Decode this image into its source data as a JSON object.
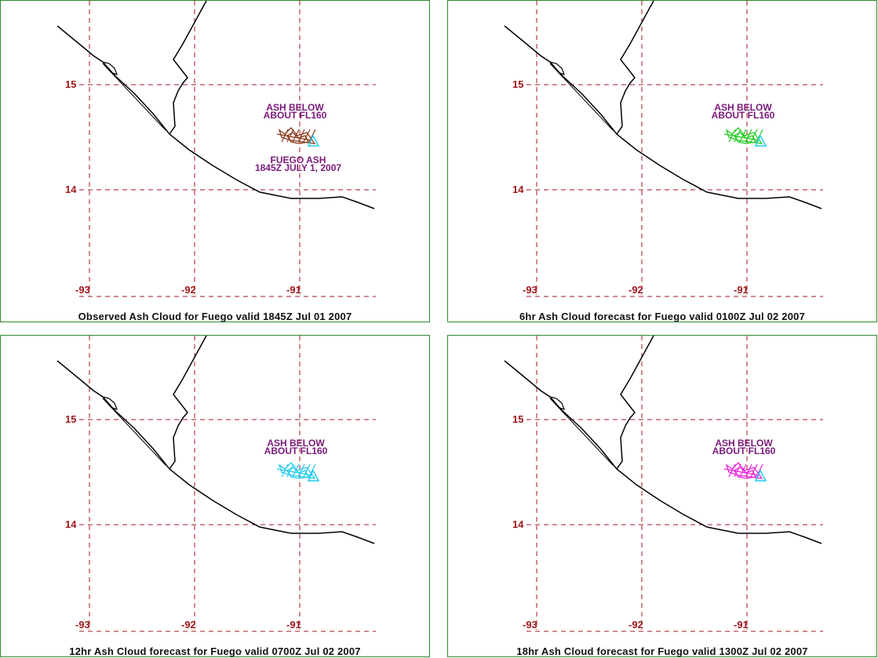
{
  "colors": {
    "grid": "#a0181c",
    "coast": "#000000",
    "label": "#7a1a7a",
    "panel_border": "#2e8b2e",
    "observed_ash": "#8b3a1a",
    "fcst6_ash": "#22cc22",
    "fcst12_ash": "#22ccee",
    "fcst18_ash": "#ee22dd",
    "vent_marker": "#22ccee"
  },
  "map": {
    "lat_labels": [
      "15",
      "14"
    ],
    "lon_labels": [
      "-93",
      "-92",
      "-91"
    ]
  },
  "panels": [
    {
      "caption": "Observed Ash Cloud for Fuego valid 1845Z Jul 01 2007",
      "ash_label_1": "ASH BELOW",
      "ash_label_2": "ABOUT FL160",
      "source_label_1": "FUEGO ASH",
      "source_label_2": "1845Z JULY 1, 2007",
      "ash_color_key": "observed_ash"
    },
    {
      "caption": "6hr Ash Cloud forecast for Fuego valid 0100Z Jul 02 2007",
      "ash_label_1": "ASH BELOW",
      "ash_label_2": "ABOUT FL160",
      "ash_color_key": "fcst6_ash"
    },
    {
      "caption": "12hr Ash Cloud forecast for Fuego valid 0700Z Jul 02 2007",
      "ash_label_1": "ASH BELOW",
      "ash_label_2": "ABOUT FL160",
      "ash_color_key": "fcst12_ash"
    },
    {
      "caption": "18hr Ash Cloud forecast for Fuego valid 1300Z Jul 02 2007",
      "ash_label_1": "ASH BELOW",
      "ash_label_2": "ABOUT FL160",
      "ash_color_key": "fcst18_ash"
    }
  ]
}
